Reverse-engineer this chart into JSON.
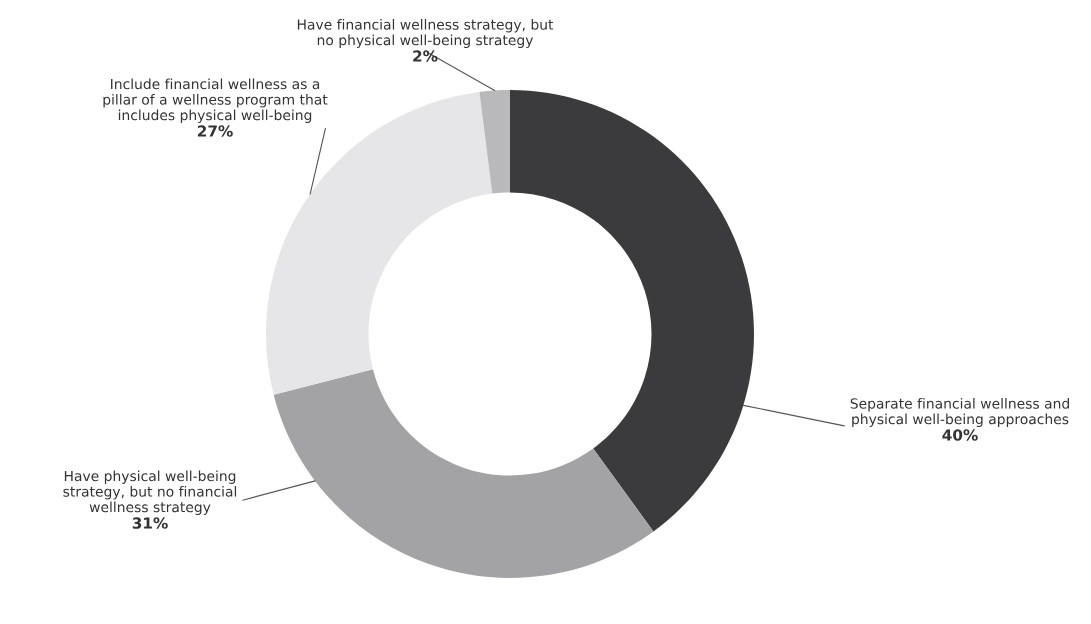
{
  "chart_data": {
    "type": "donut",
    "categories": [
      "Separate financial wellness and\nphysical well-being approaches",
      "Have physical well-being\nstrategy, but no financial\nwellness strategy",
      "Include financial wellness as a\npillar of a wellness program that\nincludes physical well-being",
      "Have financial wellness strategy, but\nno physical well-being strategy"
    ],
    "values": [
      40,
      31,
      27,
      2
    ],
    "value_labels": [
      "40%",
      "31%",
      "27%",
      "2%"
    ],
    "colors": [
      "#3b3b3d",
      "#a3a2a4",
      "#e6e6e8",
      "#b9b9bb"
    ]
  }
}
